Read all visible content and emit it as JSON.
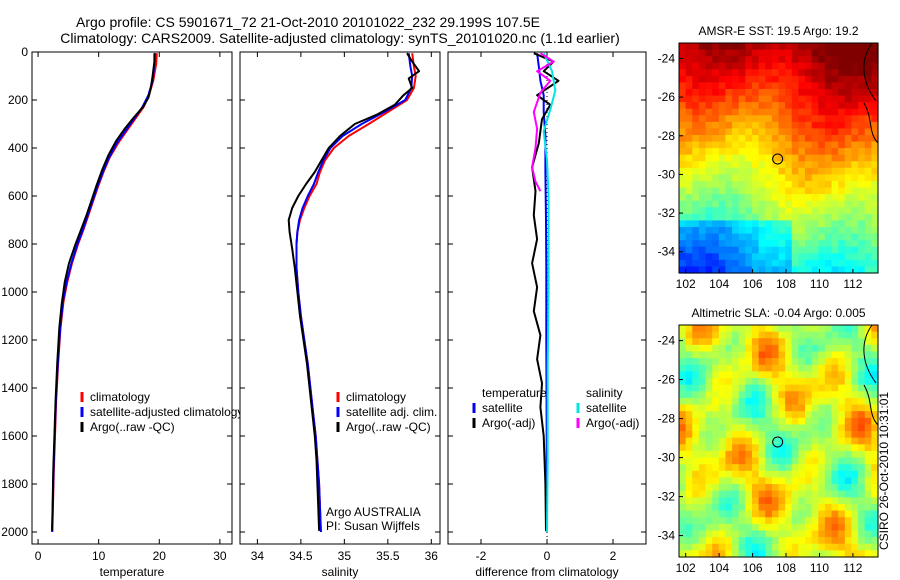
{
  "header": {
    "title_line1": "Argo profile: CS 5901671_72 21-Oct-2010 20101022_232 29.199S 107.5E",
    "title_line2": "Climatology: CARS2009. Satellite-adjusted climatology: synTS_20101020.nc (1.1d earlier)"
  },
  "side_credit": "CSIRO 26-Oct-2010 10:31:01",
  "colors": {
    "climatology": "#ff0000",
    "satellite": "#0000ff",
    "argo": "#000000",
    "salinity_satellite": "#00e5e5",
    "salinity_argo": "#ff00ff"
  },
  "chart_data": [
    {
      "type": "line",
      "panel": "temperature",
      "xlabel": "temperature",
      "ylabel": "",
      "xlim": [
        -1,
        32
      ],
      "ylim": [
        2050,
        0
      ],
      "y_reversed": true,
      "x_ticks": [
        "0",
        "10",
        "20",
        "30"
      ],
      "y_ticks": [
        "0",
        "200",
        "400",
        "600",
        "800",
        "1000",
        "1200",
        "1400",
        "1600",
        "1800",
        "2000"
      ],
      "legend": {
        "position": "lower-right",
        "entries": [
          "climatology",
          "satellite-adjusted climatology",
          "Argo(..raw -QC)"
        ]
      },
      "series": [
        {
          "name": "climatology",
          "color_key": "climatology",
          "points": [
            [
              19.6,
              5
            ],
            [
              19.5,
              50
            ],
            [
              19.0,
              120
            ],
            [
              18.3,
              180
            ],
            [
              17.4,
              230
            ],
            [
              16.0,
              280
            ],
            [
              14.6,
              330
            ],
            [
              13.2,
              380
            ],
            [
              11.8,
              440
            ],
            [
              10.8,
              500
            ],
            [
              9.9,
              560
            ],
            [
              9.1,
              620
            ],
            [
              8.3,
              680
            ],
            [
              7.5,
              740
            ],
            [
              6.6,
              800
            ],
            [
              5.6,
              880
            ],
            [
              4.8,
              960
            ],
            [
              4.2,
              1040
            ],
            [
              3.7,
              1150
            ],
            [
              3.3,
              1300
            ],
            [
              3.0,
              1450
            ],
            [
              2.8,
              1600
            ],
            [
              2.6,
              1750
            ],
            [
              2.45,
              1900
            ],
            [
              2.35,
              2000
            ]
          ]
        },
        {
          "name": "satellite-adjusted climatology",
          "color_key": "satellite",
          "points": [
            [
              19.3,
              5
            ],
            [
              19.2,
              50
            ],
            [
              18.9,
              120
            ],
            [
              18.2,
              180
            ],
            [
              17.2,
              230
            ],
            [
              15.8,
              280
            ],
            [
              14.4,
              330
            ],
            [
              13.0,
              380
            ],
            [
              11.7,
              440
            ],
            [
              10.7,
              500
            ],
            [
              9.8,
              560
            ],
            [
              9.0,
              620
            ],
            [
              8.2,
              680
            ],
            [
              7.4,
              740
            ],
            [
              6.5,
              800
            ],
            [
              5.5,
              880
            ],
            [
              4.7,
              960
            ],
            [
              4.1,
              1040
            ],
            [
              3.65,
              1150
            ],
            [
              3.25,
              1300
            ],
            [
              2.95,
              1450
            ],
            [
              2.75,
              1600
            ],
            [
              2.55,
              1750
            ],
            [
              2.42,
              1900
            ],
            [
              2.33,
              2000
            ]
          ]
        },
        {
          "name": "Argo(..raw -QC)",
          "color_key": "argo",
          "points": [
            [
              19.2,
              5
            ],
            [
              19.2,
              40
            ],
            [
              18.9,
              100
            ],
            [
              18.6,
              150
            ],
            [
              18.2,
              190
            ],
            [
              17.3,
              230
            ],
            [
              15.9,
              270
            ],
            [
              14.3,
              320
            ],
            [
              12.9,
              370
            ],
            [
              11.6,
              430
            ],
            [
              10.6,
              490
            ],
            [
              9.6,
              560
            ],
            [
              8.8,
              620
            ],
            [
              8.0,
              680
            ],
            [
              7.1,
              740
            ],
            [
              6.2,
              800
            ],
            [
              5.1,
              880
            ],
            [
              4.4,
              960
            ],
            [
              3.9,
              1050
            ],
            [
              3.5,
              1150
            ],
            [
              3.15,
              1300
            ],
            [
              2.9,
              1450
            ],
            [
              2.7,
              1600
            ],
            [
              2.5,
              1750
            ],
            [
              2.4,
              1900
            ],
            [
              2.3,
              1995
            ]
          ]
        }
      ]
    },
    {
      "type": "line",
      "panel": "salinity",
      "xlabel": "salinity",
      "ylabel": "",
      "xlim": [
        33.8,
        36.1
      ],
      "ylim": [
        2050,
        0
      ],
      "y_reversed": true,
      "x_ticks": [
        "34",
        "34.5",
        "35",
        "35.5",
        "36"
      ],
      "annotation": [
        "Argo AUSTRALIA",
        "PI: Susan Wijffels"
      ],
      "legend": {
        "position": "lower-right",
        "entries": [
          "climatology",
          "satellite adj. clim.",
          "Argo(..raw -QC)"
        ]
      },
      "series": [
        {
          "name": "climatology",
          "color_key": "climatology",
          "points": [
            [
              35.78,
              5
            ],
            [
              35.8,
              60
            ],
            [
              35.82,
              100
            ],
            [
              35.8,
              150
            ],
            [
              35.72,
              200
            ],
            [
              35.5,
              250
            ],
            [
              35.28,
              300
            ],
            [
              35.05,
              350
            ],
            [
              34.88,
              400
            ],
            [
              34.78,
              450
            ],
            [
              34.72,
              500
            ],
            [
              34.68,
              550
            ],
            [
              34.6,
              600
            ],
            [
              34.54,
              650
            ],
            [
              34.49,
              700
            ],
            [
              34.46,
              750
            ],
            [
              34.45,
              800
            ],
            [
              34.45,
              900
            ],
            [
              34.47,
              1000
            ],
            [
              34.5,
              1100
            ],
            [
              34.54,
              1200
            ],
            [
              34.58,
              1300
            ],
            [
              34.61,
              1400
            ],
            [
              34.64,
              1500
            ],
            [
              34.67,
              1600
            ],
            [
              34.69,
              1700
            ],
            [
              34.71,
              1800
            ],
            [
              34.72,
              1900
            ],
            [
              34.73,
              2000
            ]
          ]
        },
        {
          "name": "satellite adj. clim.",
          "color_key": "satellite",
          "points": [
            [
              35.74,
              5
            ],
            [
              35.76,
              60
            ],
            [
              35.78,
              100
            ],
            [
              35.77,
              150
            ],
            [
              35.7,
              200
            ],
            [
              35.46,
              250
            ],
            [
              35.2,
              300
            ],
            [
              34.98,
              350
            ],
            [
              34.84,
              400
            ],
            [
              34.76,
              450
            ],
            [
              34.7,
              500
            ],
            [
              34.65,
              550
            ],
            [
              34.58,
              600
            ],
            [
              34.52,
              650
            ],
            [
              34.48,
              700
            ],
            [
              34.46,
              750
            ],
            [
              34.45,
              800
            ],
            [
              34.45,
              900
            ],
            [
              34.47,
              1000
            ],
            [
              34.5,
              1100
            ],
            [
              34.54,
              1200
            ],
            [
              34.58,
              1300
            ],
            [
              34.61,
              1400
            ],
            [
              34.64,
              1500
            ],
            [
              34.67,
              1600
            ],
            [
              34.69,
              1700
            ],
            [
              34.71,
              1800
            ],
            [
              34.72,
              1900
            ],
            [
              34.73,
              2000
            ]
          ]
        },
        {
          "name": "Argo(..raw -QC)",
          "color_key": "argo",
          "points": [
            [
              35.72,
              5
            ],
            [
              35.78,
              40
            ],
            [
              35.86,
              80
            ],
            [
              35.74,
              110
            ],
            [
              35.78,
              150
            ],
            [
              35.68,
              180
            ],
            [
              35.58,
              220
            ],
            [
              35.38,
              260
            ],
            [
              35.12,
              300
            ],
            [
              34.95,
              350
            ],
            [
              34.82,
              400
            ],
            [
              34.74,
              450
            ],
            [
              34.66,
              500
            ],
            [
              34.56,
              550
            ],
            [
              34.47,
              600
            ],
            [
              34.4,
              650
            ],
            [
              34.36,
              700
            ],
            [
              34.37,
              750
            ],
            [
              34.4,
              820
            ],
            [
              34.43,
              900
            ],
            [
              34.46,
              1000
            ],
            [
              34.49,
              1100
            ],
            [
              34.53,
              1200
            ],
            [
              34.57,
              1300
            ],
            [
              34.6,
              1400
            ],
            [
              34.63,
              1500
            ],
            [
              34.66,
              1600
            ],
            [
              34.68,
              1700
            ],
            [
              34.69,
              1800
            ],
            [
              34.7,
              1900
            ],
            [
              34.71,
              1995
            ]
          ]
        }
      ]
    },
    {
      "type": "line",
      "panel": "difference",
      "xlabel": "difference from climatology",
      "ylabel": "",
      "xlim": [
        -3,
        3
      ],
      "ylim": [
        2050,
        0
      ],
      "y_reversed": true,
      "x_ticks": [
        "-2",
        "0",
        "2"
      ],
      "legend": {
        "position": "lower-center",
        "columns": [
          {
            "heading": "temperature",
            "entries": [
              "satellite",
              "Argo(-adj)"
            ]
          },
          {
            "heading": "salinity",
            "entries": [
              "satellite",
              "Argo(-adj)"
            ]
          }
        ]
      },
      "series": [
        {
          "name": "temperature satellite",
          "color_key": "satellite",
          "points": [
            [
              -0.3,
              5
            ],
            [
              -0.25,
              60
            ],
            [
              -0.2,
              120
            ],
            [
              -0.1,
              180
            ],
            [
              -0.1,
              250
            ],
            [
              -0.05,
              350
            ],
            [
              -0.05,
              500
            ],
            [
              -0.03,
              700
            ],
            [
              -0.02,
              900
            ],
            [
              -0.02,
              1200
            ],
            [
              -0.01,
              1600
            ],
            [
              -0.01,
              2000
            ]
          ]
        },
        {
          "name": "temperature Argo(-adj)",
          "color_key": "argo",
          "points": [
            [
              -0.4,
              5
            ],
            [
              0.2,
              40
            ],
            [
              -0.1,
              80
            ],
            [
              0.35,
              120
            ],
            [
              -0.3,
              180
            ],
            [
              0.1,
              220
            ],
            [
              -0.15,
              280
            ],
            [
              -0.25,
              380
            ],
            [
              -0.45,
              480
            ],
            [
              -0.35,
              580
            ],
            [
              -0.4,
              680
            ],
            [
              -0.3,
              780
            ],
            [
              -0.45,
              880
            ],
            [
              -0.3,
              980
            ],
            [
              -0.4,
              1080
            ],
            [
              -0.2,
              1180
            ],
            [
              -0.3,
              1280
            ],
            [
              -0.15,
              1380
            ],
            [
              -0.2,
              1480
            ],
            [
              -0.1,
              1600
            ],
            [
              -0.05,
              1800
            ],
            [
              -0.03,
              1995
            ]
          ]
        },
        {
          "name": "salinity satellite",
          "color_key": "salinity_satellite",
          "points": [
            [
              -0.1,
              5
            ],
            [
              0.15,
              80
            ],
            [
              0.25,
              160
            ],
            [
              0.1,
              240
            ],
            [
              -0.1,
              330
            ],
            [
              0.0,
              450
            ],
            [
              0.05,
              600
            ],
            [
              0.05,
              800
            ],
            [
              0.05,
              1000
            ],
            [
              0.02,
              1300
            ],
            [
              0.02,
              1700
            ],
            [
              0.0,
              2000
            ]
          ]
        },
        {
          "name": "salinity Argo(-adj)",
          "color_key": "salinity_argo",
          "points": [
            [
              -0.2,
              5
            ],
            [
              0.2,
              40
            ],
            [
              -0.3,
              80
            ],
            [
              0.1,
              120
            ],
            [
              -0.2,
              170
            ],
            [
              -0.4,
              250
            ],
            [
              -0.3,
              320
            ],
            [
              -0.35,
              400
            ],
            [
              -0.45,
              480
            ],
            [
              -0.35,
              540
            ],
            [
              -0.2,
              580
            ]
          ]
        }
      ]
    },
    {
      "type": "heatmap",
      "panel": "sst-map",
      "title": "AMSR-E SST: 19.5 Argo: 19.2",
      "xlim": [
        101.6,
        113.5
      ],
      "ylim": [
        -35.1,
        -23.2
      ],
      "x_ticks": [
        "102",
        "104",
        "106",
        "108",
        "110",
        "112"
      ],
      "y_ticks": [
        "-24",
        "-26",
        "-28",
        "-30",
        "-32",
        "-34"
      ],
      "float_position": [
        107.5,
        -29.2
      ]
    },
    {
      "type": "heatmap",
      "panel": "sla-map",
      "title": "Altimetric SLA: -0.04 Argo: 0.005",
      "xlim": [
        101.6,
        113.5
      ],
      "ylim": [
        -35.1,
        -23.2
      ],
      "x_ticks": [
        "102",
        "104",
        "106",
        "108",
        "110",
        "112"
      ],
      "y_ticks": [
        "-24",
        "-26",
        "-28",
        "-30",
        "-32",
        "-34"
      ],
      "float_position": [
        107.5,
        -29.2
      ]
    }
  ]
}
